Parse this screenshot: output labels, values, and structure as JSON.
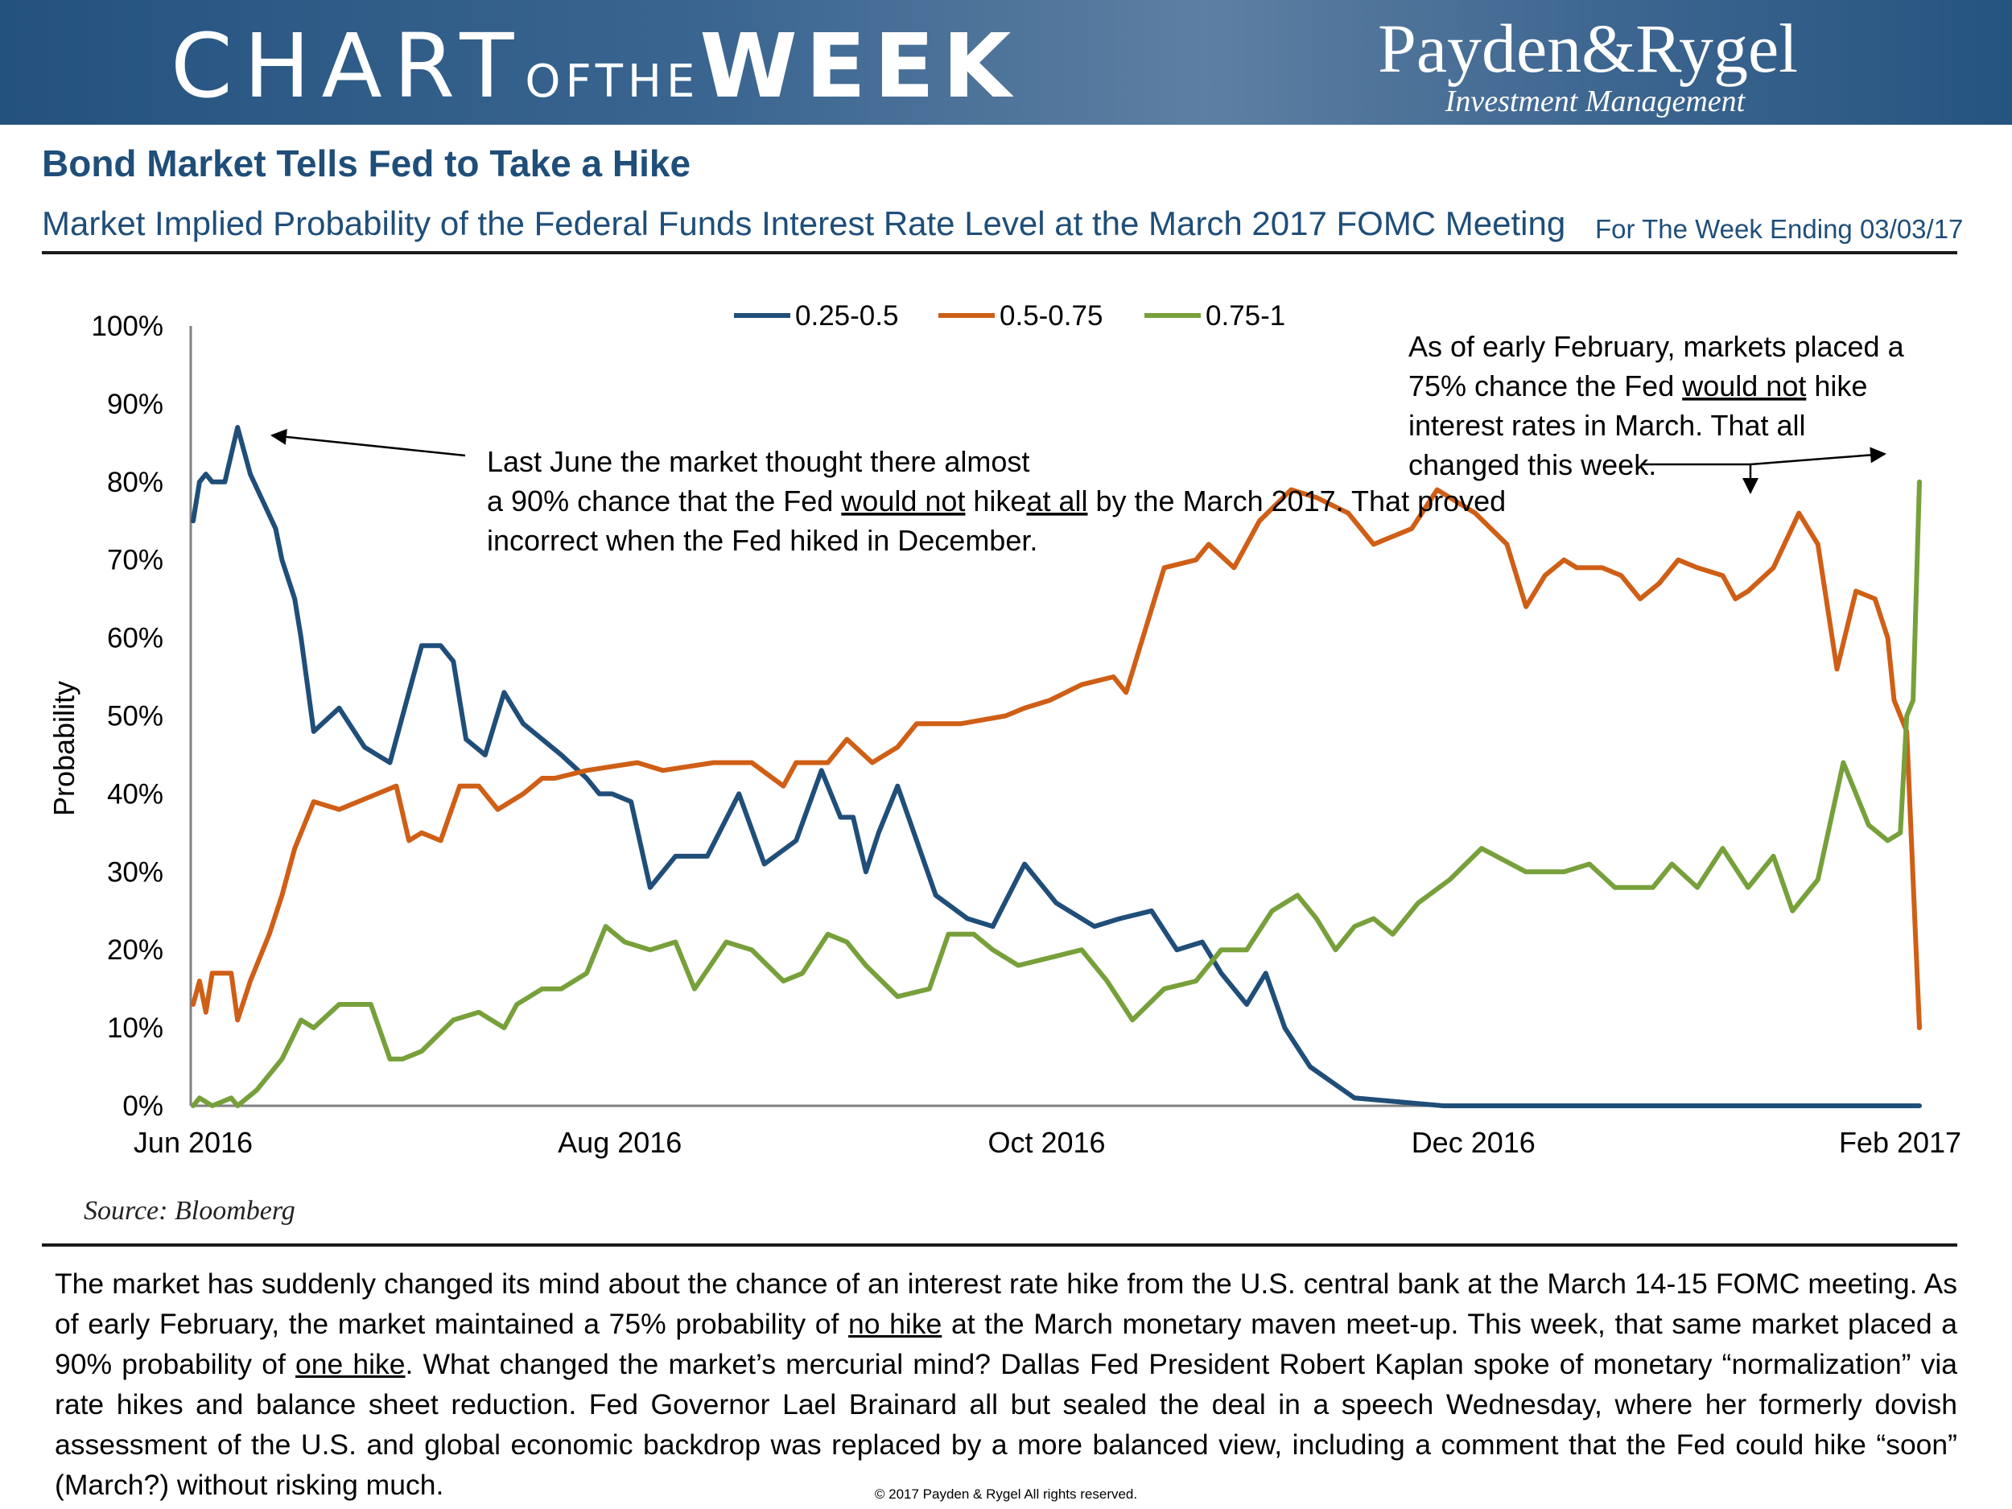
{
  "banner": {
    "title_chart": "CHART",
    "title_of_the": "OFTHE",
    "title_week": "WEEK",
    "logo_main": "Payden&Rygel",
    "logo_sub": "Investment Management"
  },
  "header": {
    "title": "Bond Market Tells Fed to Take a Hike",
    "subtitle": "Market Implied Probability of the Federal Funds Interest Rate Level at the March 2017 FOMC Meeting",
    "week_ending": "For The Week Ending 03/03/17"
  },
  "chart_data": {
    "type": "line",
    "ylabel": "Probability",
    "xlabel": "",
    "ylim": [
      0,
      100
    ],
    "y_ticks": [
      "0%",
      "10%",
      "20%",
      "30%",
      "40%",
      "50%",
      "60%",
      "70%",
      "80%",
      "90%",
      "100%"
    ],
    "x_ticks": [
      "Jun 2016",
      "Aug 2016",
      "Oct 2016",
      "Dec 2016",
      "Feb 2017"
    ],
    "x_range": [
      "2016-06-01",
      "2017-02-28"
    ],
    "legend_position": "top-center",
    "series": [
      {
        "name": "0.25-0.5",
        "color": "#1f4e79",
        "x": [
          "2016-06-01",
          "2016-06-02",
          "2016-06-03",
          "2016-06-04",
          "2016-06-06",
          "2016-06-08",
          "2016-06-10",
          "2016-06-14",
          "2016-06-15",
          "2016-06-17",
          "2016-06-18",
          "2016-06-20",
          "2016-06-24",
          "2016-06-28",
          "2016-06-30",
          "2016-07-02",
          "2016-07-04",
          "2016-07-07",
          "2016-07-10",
          "2016-07-12",
          "2016-07-14",
          "2016-07-17",
          "2016-07-20",
          "2016-07-23",
          "2016-07-26",
          "2016-07-29",
          "2016-08-02",
          "2016-08-04",
          "2016-08-06",
          "2016-08-09",
          "2016-08-12",
          "2016-08-16",
          "2016-08-21",
          "2016-08-26",
          "2016-08-30",
          "2016-09-04",
          "2016-09-08",
          "2016-09-11",
          "2016-09-13",
          "2016-09-15",
          "2016-09-17",
          "2016-09-20",
          "2016-09-23",
          "2016-09-26",
          "2016-10-01",
          "2016-10-05",
          "2016-10-10",
          "2016-10-15",
          "2016-10-21",
          "2016-10-25",
          "2016-10-30",
          "2016-11-03",
          "2016-11-07",
          "2016-11-10",
          "2016-11-14",
          "2016-11-17",
          "2016-11-20",
          "2016-11-24",
          "2016-12-01",
          "2016-12-15",
          "2017-01-01",
          "2017-01-15",
          "2017-02-01",
          "2017-02-15",
          "2017-02-28"
        ],
        "values": [
          75,
          80,
          81,
          80,
          80,
          87,
          81,
          74,
          70,
          65,
          60,
          48,
          51,
          46,
          45,
          44,
          50,
          59,
          59,
          57,
          47,
          45,
          53,
          49,
          47,
          45,
          42,
          40,
          40,
          39,
          28,
          32,
          32,
          40,
          31,
          34,
          43,
          37,
          37,
          30,
          35,
          41,
          34,
          27,
          24,
          23,
          31,
          26,
          23,
          24,
          25,
          20,
          21,
          17,
          13,
          17,
          10,
          5,
          1,
          0,
          0,
          0,
          0,
          0,
          0
        ]
      },
      {
        "name": "0.5-0.75",
        "color": "#cf5f16",
        "x": [
          "2016-06-01",
          "2016-06-02",
          "2016-06-03",
          "2016-06-04",
          "2016-06-07",
          "2016-06-08",
          "2016-06-10",
          "2016-06-13",
          "2016-06-15",
          "2016-06-17",
          "2016-06-20",
          "2016-06-24",
          "2016-06-30",
          "2016-07-03",
          "2016-07-05",
          "2016-07-07",
          "2016-07-10",
          "2016-07-13",
          "2016-07-16",
          "2016-07-19",
          "2016-07-23",
          "2016-07-26",
          "2016-07-28",
          "2016-08-02",
          "2016-08-10",
          "2016-08-14",
          "2016-08-22",
          "2016-08-28",
          "2016-09-02",
          "2016-09-04",
          "2016-09-09",
          "2016-09-12",
          "2016-09-16",
          "2016-09-20",
          "2016-09-23",
          "2016-09-30",
          "2016-10-07",
          "2016-10-10",
          "2016-10-14",
          "2016-10-19",
          "2016-10-24",
          "2016-10-26",
          "2016-11-01",
          "2016-11-06",
          "2016-11-08",
          "2016-11-12",
          "2016-11-16",
          "2016-11-21",
          "2016-11-25",
          "2016-11-30",
          "2016-12-04",
          "2016-12-10",
          "2016-12-14",
          "2016-12-20",
          "2016-12-25",
          "2016-12-28",
          "2016-12-31",
          "2017-01-03",
          "2017-01-05",
          "2017-01-09",
          "2017-01-12",
          "2017-01-15",
          "2017-01-18",
          "2017-01-21",
          "2017-01-24",
          "2017-01-28",
          "2017-01-30",
          "2017-02-01",
          "2017-02-05",
          "2017-02-09",
          "2017-02-12",
          "2017-02-15",
          "2017-02-18",
          "2017-02-21",
          "2017-02-23",
          "2017-02-24",
          "2017-02-26",
          "2017-02-28"
        ],
        "values": [
          13,
          16,
          12,
          17,
          17,
          11,
          16,
          22,
          27,
          33,
          39,
          38,
          40,
          41,
          34,
          35,
          34,
          41,
          41,
          38,
          40,
          42,
          42,
          43,
          44,
          43,
          44,
          44,
          41,
          44,
          44,
          47,
          44,
          46,
          49,
          49,
          50,
          51,
          52,
          54,
          55,
          53,
          69,
          70,
          72,
          69,
          75,
          79,
          78,
          76,
          72,
          74,
          79,
          76,
          72,
          64,
          68,
          70,
          69,
          69,
          68,
          65,
          67,
          70,
          69,
          68,
          65,
          66,
          69,
          76,
          72,
          56,
          66,
          65,
          60,
          52,
          48,
          10
        ]
      },
      {
        "name": "0.75-1",
        "color": "#77a03b",
        "x": [
          "2016-06-01",
          "2016-06-02",
          "2016-06-04",
          "2016-06-07",
          "2016-06-08",
          "2016-06-11",
          "2016-06-15",
          "2016-06-18",
          "2016-06-20",
          "2016-06-24",
          "2016-06-29",
          "2016-07-02",
          "2016-07-04",
          "2016-07-07",
          "2016-07-12",
          "2016-07-16",
          "2016-07-20",
          "2016-07-22",
          "2016-07-26",
          "2016-07-29",
          "2016-08-02",
          "2016-08-05",
          "2016-08-08",
          "2016-08-12",
          "2016-08-16",
          "2016-08-19",
          "2016-08-24",
          "2016-08-28",
          "2016-09-02",
          "2016-09-05",
          "2016-09-09",
          "2016-09-12",
          "2016-09-15",
          "2016-09-20",
          "2016-09-25",
          "2016-09-28",
          "2016-10-02",
          "2016-10-05",
          "2016-10-09",
          "2016-10-14",
          "2016-10-19",
          "2016-10-23",
          "2016-10-27",
          "2016-11-01",
          "2016-11-06",
          "2016-11-10",
          "2016-11-14",
          "2016-11-18",
          "2016-11-22",
          "2016-11-25",
          "2016-11-28",
          "2016-12-01",
          "2016-12-04",
          "2016-12-07",
          "2016-12-11",
          "2016-12-16",
          "2016-12-21",
          "2016-12-28",
          "2017-01-03",
          "2017-01-07",
          "2017-01-11",
          "2017-01-14",
          "2017-01-17",
          "2017-01-20",
          "2017-01-24",
          "2017-01-28",
          "2017-02-01",
          "2017-02-05",
          "2017-02-08",
          "2017-02-12",
          "2017-02-16",
          "2017-02-20",
          "2017-02-23",
          "2017-02-25",
          "2017-02-26",
          "2017-02-27",
          "2017-02-28"
        ],
        "values": [
          0,
          1,
          0,
          1,
          0,
          2,
          6,
          11,
          10,
          13,
          13,
          6,
          6,
          7,
          11,
          12,
          10,
          13,
          15,
          15,
          17,
          23,
          21,
          20,
          21,
          15,
          21,
          20,
          16,
          17,
          22,
          21,
          18,
          14,
          15,
          22,
          22,
          20,
          18,
          19,
          20,
          16,
          11,
          15,
          16,
          20,
          20,
          25,
          27,
          24,
          20,
          23,
          24,
          22,
          26,
          29,
          33,
          30,
          30,
          31,
          28,
          28,
          28,
          31,
          28,
          33,
          28,
          32,
          25,
          29,
          44,
          36,
          34,
          35,
          50,
          52,
          80
        ]
      }
    ],
    "annotations": [
      {
        "lines": [
          "Last June the market thought there almost",
          "a 90% chance that the Fed |would not| hike",
          "|at all| by the March 2017. That proved",
          "incorrect when the Fed hiked in December."
        ]
      },
      {
        "lines": [
          "As of early February, markets placed a",
          "75% chance the Fed |would not| hike",
          "interest rates in March. That all",
          "changed this week."
        ]
      }
    ]
  },
  "source": "Source: Bloomberg",
  "commentary": {
    "p1": "The market has suddenly changed its mind about the chance of an interest rate hike from the U.S. central bank at the March 14-15 FOMC meeting. As of early February, the market maintained a 75% probability of ",
    "u1": "no hike",
    "p2": " at the March monetary maven meet-up. This week, that same market placed a 90% probability of ",
    "u2": "one hike",
    "p3": ". What changed the market’s mercurial mind? Dallas Fed President Robert Kaplan spoke of monetary “normalization” via rate hikes and balance sheet reduction. Fed Governor Lael Brainard all but sealed the deal in a speech Wednesday, where her formerly dovish assessment of the U.S. and global economic backdrop was replaced by a more balanced view, including a comment that the Fed could hike “soon” (March?) without risking much."
  },
  "footer": {
    "copyright": "© 2017 Payden & Rygel All rights reserved."
  }
}
